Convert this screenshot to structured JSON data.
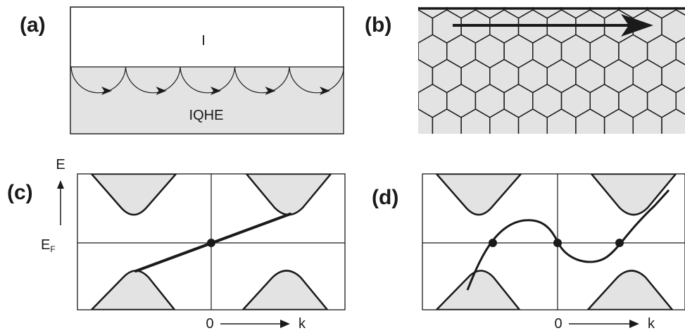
{
  "panels": {
    "a": {
      "label": "(a)",
      "top_region": "I",
      "bottom_region": "IQHE"
    },
    "b": {
      "label": "(b)"
    },
    "c": {
      "label": "(c)",
      "energy_axis": "E",
      "fermi_symbol": "E",
      "fermi_subscript": "F",
      "k_origin": "0",
      "k_label": "k"
    },
    "d": {
      "label": "(d)",
      "k_origin": "0",
      "k_label": "k"
    }
  },
  "colors": {
    "ink": "#1a1a1a",
    "shade": "#e3e3e3"
  }
}
